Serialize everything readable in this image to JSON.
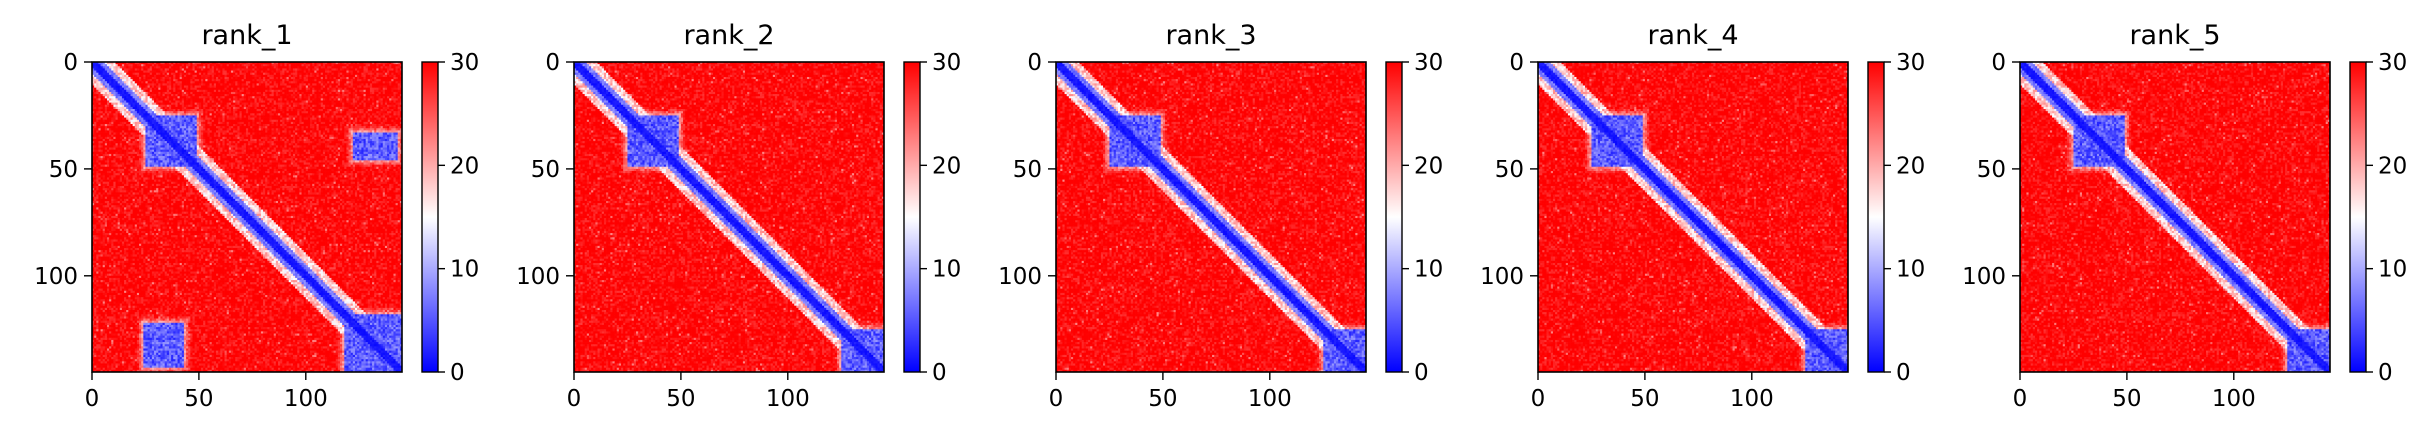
{
  "chart_data": [
    {
      "type": "heatmap",
      "title": "rank_1",
      "x_ticks": [
        0,
        50,
        100
      ],
      "y_ticks": [
        0,
        50,
        100
      ],
      "n": 145,
      "colorbar": {
        "colormap": "bwr",
        "min": 0,
        "max": 30,
        "ticks": [
          0,
          10,
          20,
          30
        ]
      },
      "features": {
        "diagonal_band": true,
        "blocks": [
          {
            "x_range": [
              25,
              48
            ],
            "y_range": [
              25,
              48
            ],
            "level": "low"
          },
          {
            "x_range": [
              118,
              145
            ],
            "y_range": [
              118,
              145
            ],
            "level": "low"
          },
          {
            "x_range": [
              122,
              142
            ],
            "y_range": [
              33,
              45
            ],
            "level": "low"
          },
          {
            "x_range": [
              24,
              42
            ],
            "y_range": [
              122,
              142
            ],
            "level": "low"
          }
        ]
      }
    },
    {
      "type": "heatmap",
      "title": "rank_2",
      "x_ticks": [
        0,
        50,
        100
      ],
      "y_ticks": [
        0,
        50,
        100
      ],
      "n": 145,
      "colorbar": {
        "colormap": "bwr",
        "min": 0,
        "max": 30,
        "ticks": [
          0,
          10,
          20,
          30
        ]
      },
      "features": {
        "diagonal_band": true,
        "blocks": [
          {
            "x_range": [
              25,
              48
            ],
            "y_range": [
              25,
              48
            ],
            "level": "low"
          },
          {
            "x_range": [
              125,
              145
            ],
            "y_range": [
              125,
              145
            ],
            "level": "low"
          }
        ]
      }
    },
    {
      "type": "heatmap",
      "title": "rank_3",
      "x_ticks": [
        0,
        50,
        100
      ],
      "y_ticks": [
        0,
        50,
        100
      ],
      "n": 145,
      "colorbar": {
        "colormap": "bwr",
        "min": 0,
        "max": 30,
        "ticks": [
          0,
          10,
          20,
          30
        ]
      },
      "features": {
        "diagonal_band": true,
        "blocks": [
          {
            "x_range": [
              25,
              48
            ],
            "y_range": [
              25,
              48
            ],
            "level": "low"
          },
          {
            "x_range": [
              125,
              145
            ],
            "y_range": [
              125,
              145
            ],
            "level": "low"
          }
        ]
      }
    },
    {
      "type": "heatmap",
      "title": "rank_4",
      "x_ticks": [
        0,
        50,
        100
      ],
      "y_ticks": [
        0,
        50,
        100
      ],
      "n": 145,
      "colorbar": {
        "colormap": "bwr",
        "min": 0,
        "max": 30,
        "ticks": [
          0,
          10,
          20,
          30
        ]
      },
      "features": {
        "diagonal_band": true,
        "blocks": [
          {
            "x_range": [
              25,
              48
            ],
            "y_range": [
              25,
              48
            ],
            "level": "low"
          },
          {
            "x_range": [
              125,
              145
            ],
            "y_range": [
              125,
              145
            ],
            "level": "low"
          }
        ]
      }
    },
    {
      "type": "heatmap",
      "title": "rank_5",
      "x_ticks": [
        0,
        50,
        100
      ],
      "y_ticks": [
        0,
        50,
        100
      ],
      "n": 145,
      "colorbar": {
        "colormap": "bwr",
        "min": 0,
        "max": 30,
        "ticks": [
          0,
          10,
          20,
          30
        ]
      },
      "features": {
        "diagonal_band": true,
        "blocks": [
          {
            "x_range": [
              25,
              48
            ],
            "y_range": [
              25,
              48
            ],
            "level": "low"
          },
          {
            "x_range": [
              125,
              145
            ],
            "y_range": [
              125,
              145
            ],
            "level": "low"
          }
        ]
      }
    }
  ]
}
